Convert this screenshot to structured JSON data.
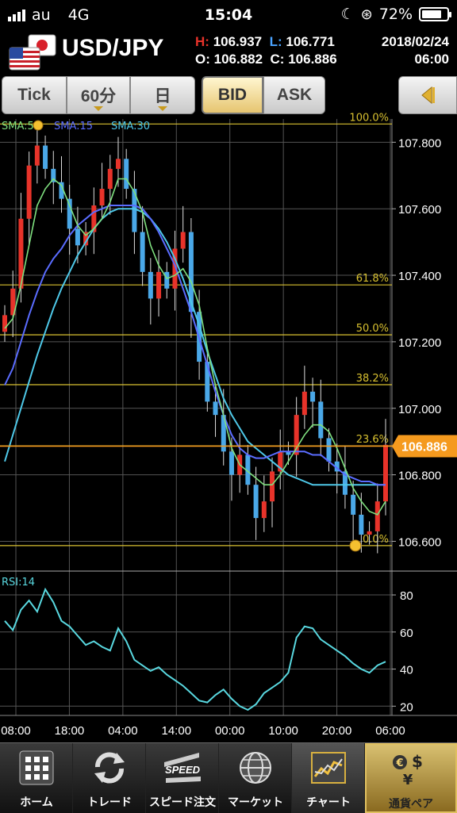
{
  "status": {
    "carrier": "au",
    "network": "4G",
    "time": "15:04",
    "battery": "72%"
  },
  "header": {
    "pair": "USD/JPY",
    "high_key": "H:",
    "high": "106.937",
    "low_key": "L:",
    "low": "106.771",
    "open_key": "O:",
    "open": "106.882",
    "close_key": "C:",
    "close": "106.886",
    "date": "2018/02/24",
    "clock": "06:00"
  },
  "toolbar": {
    "tick": "Tick",
    "interval": "60分",
    "day": "日",
    "bid": "BID",
    "ask": "ASK",
    "selected_price": "BID"
  },
  "colors": {
    "sma5": "#7fe07f",
    "sma15": "#5a6cff",
    "sma30": "#4ec8e8",
    "up": "#e8332a",
    "down": "#4aa8e8",
    "fib": "#d8c030",
    "rsi": "#59d8e0",
    "price_tag": "#f59a1e",
    "grid": "#555555"
  },
  "chart_data": [
    {
      "type": "candlestick",
      "legend": [
        {
          "name": "SMA:5"
        },
        {
          "name": "SMA:15"
        },
        {
          "name": "SMA:30"
        }
      ],
      "y_ticks": [
        "107.800",
        "107.600",
        "107.400",
        "107.200",
        "107.000",
        "106.800",
        "106.600"
      ],
      "ylim": [
        106.52,
        107.87
      ],
      "current_price": "106.886",
      "fibonacci": [
        {
          "label": "100.0%",
          "price": 107.855
        },
        {
          "label": "61.8%",
          "price": 107.371
        },
        {
          "label": "50.0%",
          "price": 107.221
        },
        {
          "label": "38.2%",
          "price": 107.071
        },
        {
          "label": "23.6%",
          "price": 106.887
        },
        {
          "label": "0.0%",
          "price": 106.587
        }
      ],
      "x_ticks": [
        "08:00",
        "18:00",
        "04:00",
        "14:00",
        "00:00",
        "10:00",
        "20:00",
        "06:00"
      ],
      "series_close": [
        107.28,
        107.36,
        107.57,
        107.73,
        107.79,
        107.72,
        107.68,
        107.63,
        107.54,
        107.49,
        107.53,
        107.61,
        107.66,
        107.72,
        107.75,
        107.66,
        107.53,
        107.41,
        107.33,
        107.41,
        107.36,
        107.48,
        107.53,
        107.29,
        107.14,
        107.02,
        106.98,
        106.87,
        106.8,
        106.86,
        106.77,
        106.67,
        106.72,
        106.81,
        106.87,
        106.86,
        106.98,
        107.05,
        107.02,
        106.91,
        106.84,
        106.81,
        106.74,
        106.68,
        106.62,
        106.63,
        106.72,
        106.89
      ],
      "sma5": [
        107.24,
        107.27,
        107.37,
        107.49,
        107.61,
        107.66,
        107.69,
        107.67,
        107.61,
        107.55,
        107.52,
        107.54,
        107.57,
        107.62,
        107.69,
        107.69,
        107.65,
        107.59,
        107.49,
        107.43,
        107.39,
        107.4,
        107.42,
        107.38,
        107.31,
        107.18,
        107.07,
        106.98,
        106.88,
        106.83,
        106.81,
        106.79,
        106.77,
        106.77,
        106.8,
        106.84,
        106.88,
        106.92,
        106.95,
        106.95,
        106.93,
        106.88,
        106.82,
        106.76,
        106.72,
        106.69,
        106.68,
        106.72
      ],
      "sma15": [
        107.07,
        107.12,
        107.2,
        107.28,
        107.35,
        107.41,
        107.45,
        107.48,
        107.52,
        107.55,
        107.57,
        107.59,
        107.6,
        107.61,
        107.61,
        107.61,
        107.61,
        107.6,
        107.57,
        107.53,
        107.48,
        107.43,
        107.36,
        107.29,
        107.21,
        107.13,
        107.05,
        106.98,
        106.92,
        106.88,
        106.86,
        106.85,
        106.85,
        106.86,
        106.87,
        106.87,
        106.87,
        106.87,
        106.86,
        106.86,
        106.84,
        106.82,
        106.8,
        106.79,
        106.78,
        106.78,
        106.77,
        106.77
      ],
      "sma30": [
        106.84,
        106.92,
        107.0,
        107.08,
        107.16,
        107.23,
        107.3,
        107.36,
        107.41,
        107.46,
        107.5,
        107.54,
        107.57,
        107.59,
        107.6,
        107.6,
        107.6,
        107.59,
        107.57,
        107.54,
        107.5,
        107.45,
        107.39,
        107.32,
        107.25,
        107.17,
        107.1,
        107.03,
        106.98,
        106.94,
        106.9,
        106.88,
        106.86,
        106.84,
        106.82,
        106.8,
        106.79,
        106.78,
        106.77,
        106.77,
        106.77,
        106.77,
        106.77,
        106.77,
        106.77,
        106.77,
        106.77,
        106.77
      ]
    },
    {
      "type": "line",
      "name": "RSI:14",
      "y_ticks": [
        "80",
        "60",
        "40",
        "20"
      ],
      "ylim": [
        15,
        92
      ],
      "values": [
        66,
        61,
        72,
        77,
        71,
        83,
        76,
        66,
        63,
        58,
        53,
        55,
        52,
        50,
        62,
        55,
        45,
        42,
        39,
        41,
        37,
        34,
        31,
        27,
        23,
        22,
        26,
        29,
        24,
        20,
        18,
        21,
        27,
        30,
        33,
        38,
        57,
        63,
        62,
        56,
        53,
        50,
        47,
        43,
        40,
        38,
        42,
        44
      ]
    }
  ],
  "nav": [
    {
      "label": "ホーム",
      "icon": "home-grid-icon"
    },
    {
      "label": "トレード",
      "icon": "trade-arrows-icon"
    },
    {
      "label": "スピード注文",
      "icon": "speed-order-icon"
    },
    {
      "label": "マーケット",
      "icon": "globe-icon"
    },
    {
      "label": "チャート",
      "icon": "chart-icon"
    },
    {
      "label": "通貨ペア",
      "icon": "currency-pair-icon"
    }
  ]
}
